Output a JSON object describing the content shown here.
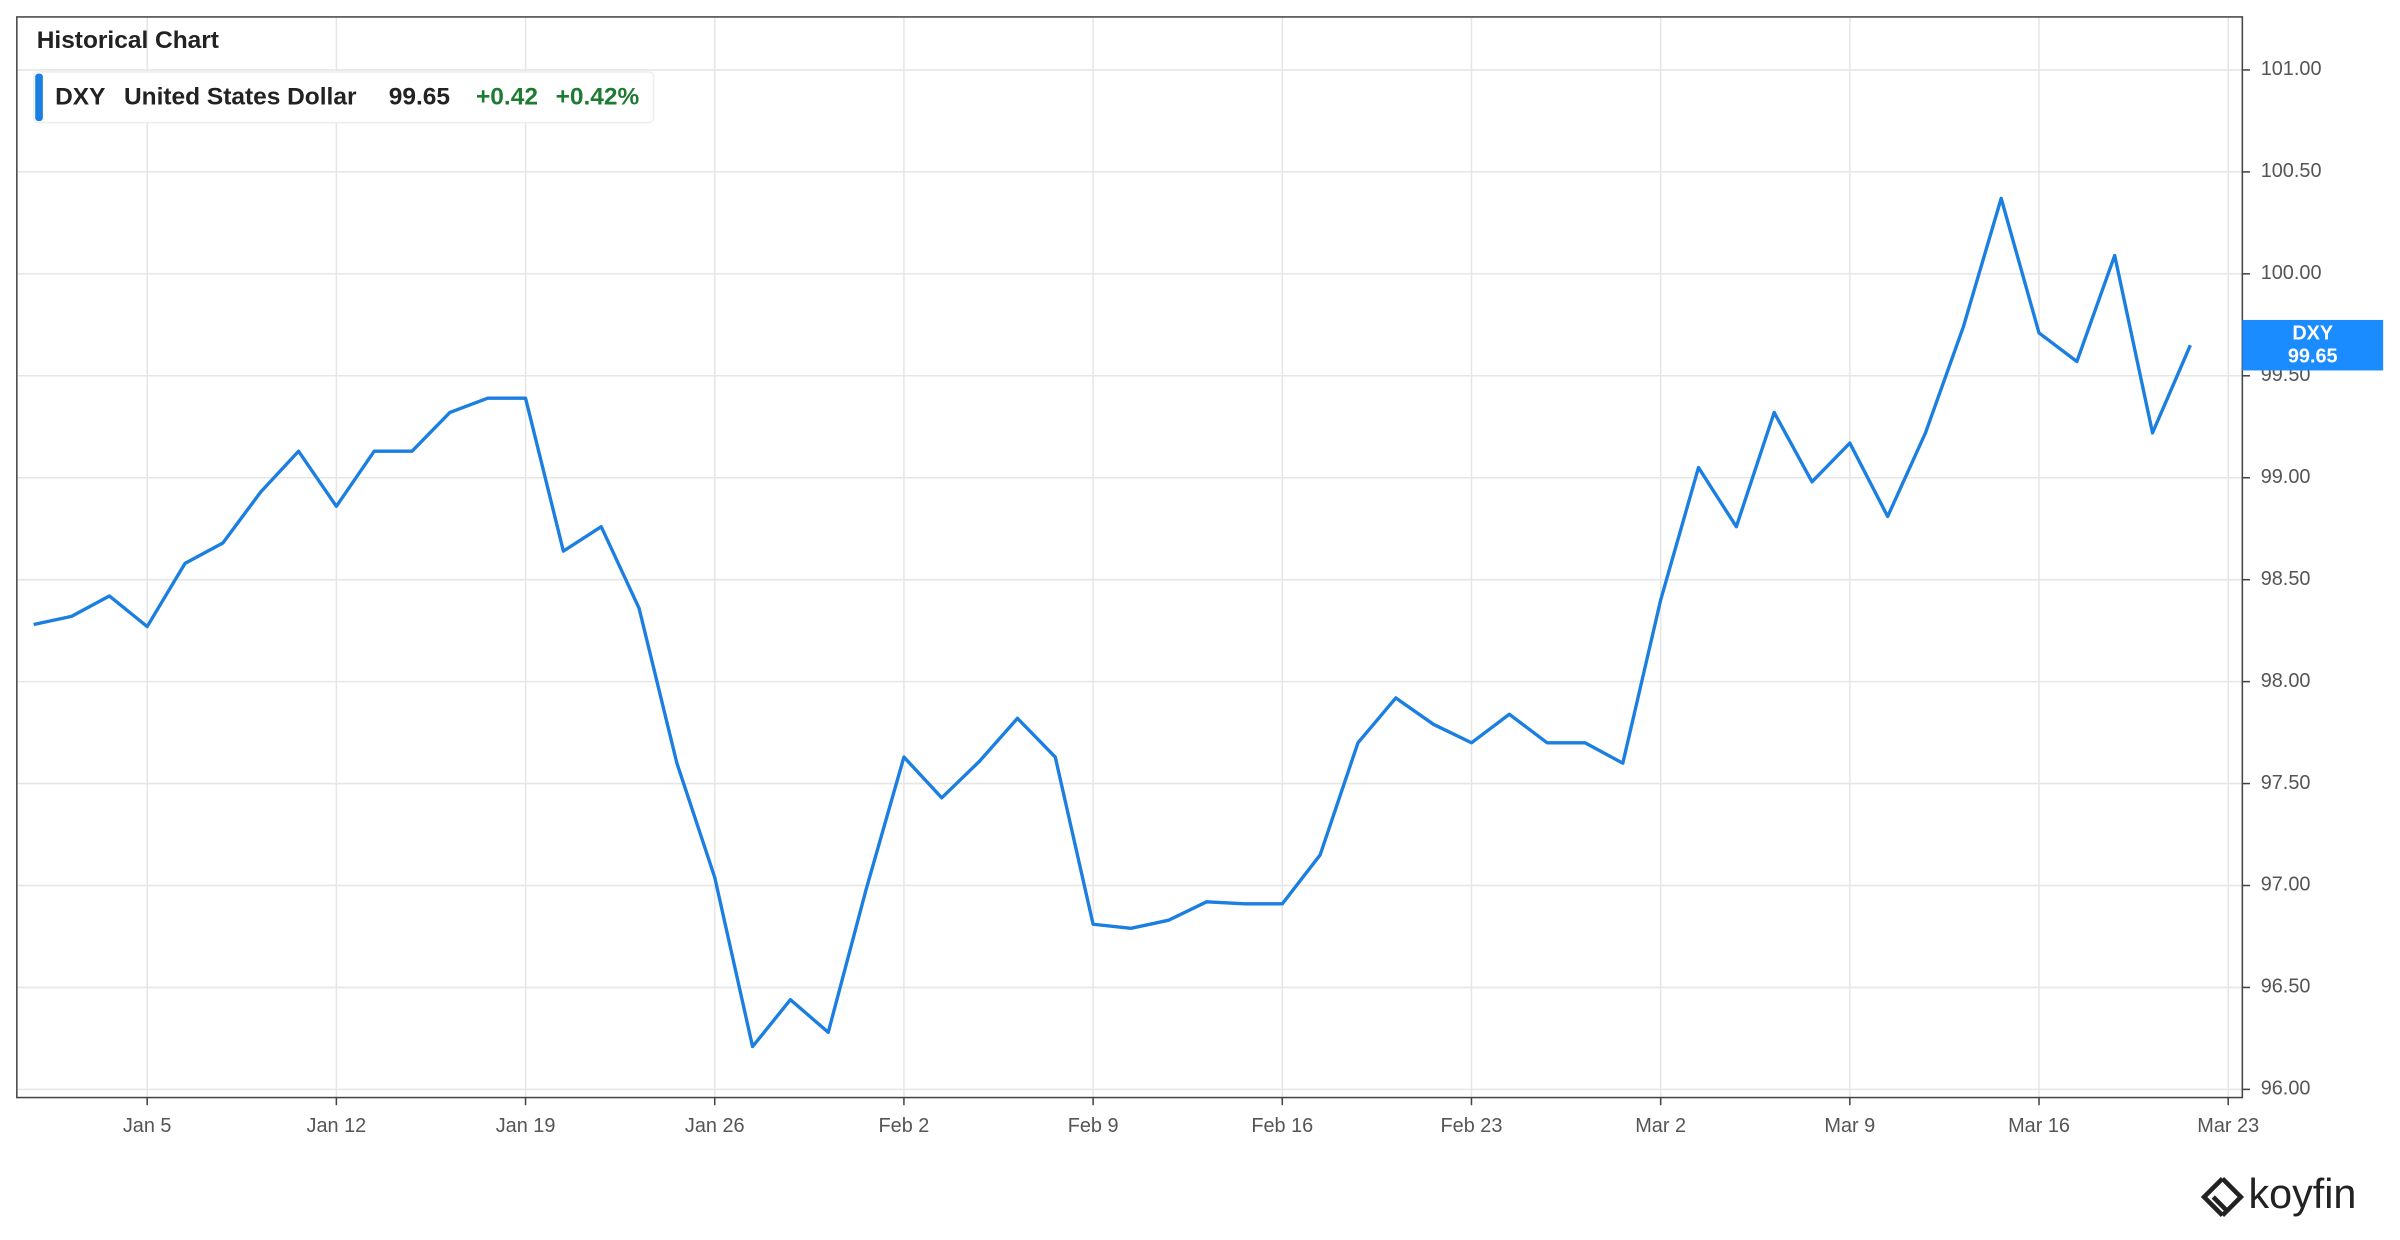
{
  "chart_data": {
    "type": "line",
    "title": "Historical Chart",
    "brand": "koyfin",
    "categories": [
      null,
      null,
      null,
      "Jan 5",
      null,
      null,
      null,
      null,
      "Jan 12",
      null,
      null,
      null,
      null,
      "Jan 19",
      null,
      null,
      null,
      null,
      "Jan 26",
      null,
      null,
      null,
      null,
      "Feb 2",
      null,
      null,
      null,
      null,
      "Feb 9",
      null,
      null,
      null,
      null,
      "Feb 16",
      null,
      null,
      null,
      null,
      "Feb 23",
      null,
      null,
      null,
      null,
      "Mar 2",
      null,
      null,
      null,
      null,
      "Mar 9",
      null,
      null,
      null,
      null,
      "Mar 16",
      null,
      null,
      null,
      null,
      "Mar 23"
    ],
    "series": [
      {
        "name": "United States Dollar",
        "symbol": "DXY",
        "color": "#1a7fe0",
        "values": [
          98.28,
          98.32,
          98.42,
          98.27,
          98.58,
          98.68,
          98.93,
          99.13,
          98.86,
          99.13,
          99.13,
          99.32,
          99.39,
          99.39,
          98.64,
          98.76,
          98.36,
          97.6,
          97.04,
          96.21,
          96.44,
          96.28,
          96.98,
          97.63,
          97.43,
          97.61,
          97.82,
          97.63,
          96.81,
          96.79,
          96.83,
          96.92,
          96.91,
          96.91,
          97.15,
          97.7,
          97.92,
          97.79,
          97.7,
          97.84,
          97.7,
          97.7,
          97.6,
          98.4,
          99.05,
          98.76,
          99.32,
          98.98,
          99.17,
          98.81,
          99.22,
          99.74,
          100.37,
          99.71,
          99.57,
          100.09,
          99.22,
          99.65,
          null
        ]
      }
    ],
    "last_value": 99.65,
    "change": {
      "value": 0.42,
      "label": "+0.42"
    },
    "change_pct": {
      "value": 0.42,
      "label": "+0.42%"
    },
    "ylim": [
      95.96,
      101.26
    ],
    "yticks": [
      {
        "value": 96,
        "label": "96.00"
      },
      {
        "value": 96.5,
        "label": "96.50"
      },
      {
        "value": 97,
        "label": "97.00"
      },
      {
        "value": 97.5,
        "label": "97.50"
      },
      {
        "value": 98,
        "label": "98.00"
      },
      {
        "value": 98.5,
        "label": "98.50"
      },
      {
        "value": 99,
        "label": "99.00"
      },
      {
        "value": 99.5,
        "label": "99.50"
      },
      {
        "value": 100,
        "label": "100.00"
      },
      {
        "value": 100.5,
        "label": "100.50"
      },
      {
        "value": 101,
        "label": "101.00"
      }
    ],
    "grid": true
  }
}
